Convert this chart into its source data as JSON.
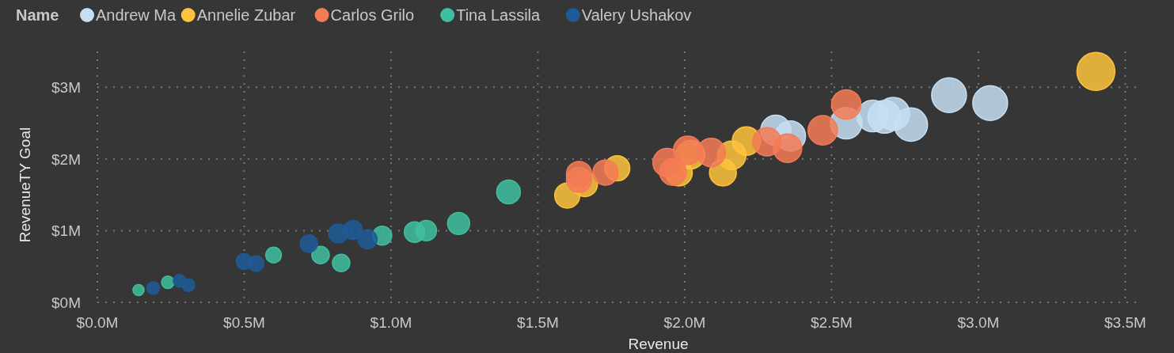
{
  "chart_data": {
    "type": "bubble",
    "xlabel": "Revenue",
    "ylabel": "RevenueTY Goal",
    "legend_title": "Name",
    "legend": "top left",
    "grid": true,
    "xlim": [
      0,
      3.55
    ],
    "ylim": [
      0,
      3.5
    ],
    "xticks": [
      {
        "value": 0,
        "label": "$0.0M"
      },
      {
        "value": 0.5,
        "label": "$0.5M"
      },
      {
        "value": 1,
        "label": "$1.0M"
      },
      {
        "value": 1.5,
        "label": "$1.5M"
      },
      {
        "value": 2,
        "label": "$2.0M"
      },
      {
        "value": 2.5,
        "label": "$2.5M"
      },
      {
        "value": 3,
        "label": "$3.0M"
      },
      {
        "value": 3.5,
        "label": "$3.5M"
      }
    ],
    "yticks": [
      {
        "value": 0,
        "label": "$0M"
      },
      {
        "value": 1,
        "label": "$1M"
      },
      {
        "value": 2,
        "label": "$2M"
      },
      {
        "value": 3,
        "label": "$3M"
      }
    ],
    "series": [
      {
        "name": "Andrew Ma",
        "color": "#c6dff3",
        "x": [
          2.31,
          2.36,
          2.55,
          2.64,
          2.68,
          2.71,
          2.77,
          2.9,
          3.04
        ],
        "values": [
          2.4,
          2.32,
          2.5,
          2.6,
          2.59,
          2.63,
          2.48,
          2.89,
          2.78
        ],
        "sizes": [
          0.63,
          0.63,
          0.69,
          0.69,
          0.75,
          0.75,
          0.77,
          0.84,
          0.84
        ]
      },
      {
        "name": "Annelie Zubar",
        "color": "#fec33c",
        "x": [
          1.6,
          1.66,
          1.77,
          1.98,
          2.02,
          2.13,
          2.16,
          2.21,
          3.4
        ],
        "values": [
          1.49,
          1.65,
          1.87,
          1.81,
          2.06,
          1.81,
          2.05,
          2.25,
          3.22
        ],
        "sizes": [
          0.44,
          0.44,
          0.44,
          0.5,
          0.56,
          0.5,
          0.56,
          0.56,
          1
        ]
      },
      {
        "name": "Carlos Grilo",
        "color": "#f47b56",
        "x": [
          1.64,
          1.64,
          1.73,
          1.94,
          1.96,
          2.01,
          2.09,
          2.28,
          2.35,
          2.47,
          2.55
        ],
        "values": [
          1.71,
          1.79,
          1.81,
          1.95,
          1.82,
          2.12,
          2.09,
          2.24,
          2.15,
          2.4,
          2.76
        ],
        "sizes": [
          0.44,
          0.44,
          0.44,
          0.56,
          0.5,
          0.56,
          0.56,
          0.56,
          0.56,
          0.6,
          0.6
        ]
      },
      {
        "name": "Tina Lassila",
        "color": "#3fbfa0",
        "x": [
          0.14,
          0.24,
          0.6,
          0.76,
          0.83,
          0.97,
          1.08,
          1.12,
          1.23,
          1.4
        ],
        "values": [
          0.17,
          0.28,
          0.66,
          0.66,
          0.55,
          0.93,
          0.98,
          1.0,
          1.1,
          1.54
        ],
        "sizes": [
          0.085,
          0.11,
          0.17,
          0.21,
          0.21,
          0.25,
          0.29,
          0.29,
          0.34,
          0.39
        ]
      },
      {
        "name": "Valery Ushakov",
        "color": "#1e5a96",
        "x": [
          0.19,
          0.28,
          0.31,
          0.5,
          0.54,
          0.72,
          0.82,
          0.87,
          0.92
        ],
        "values": [
          0.2,
          0.3,
          0.24,
          0.57,
          0.54,
          0.82,
          0.96,
          1.01,
          0.88
        ],
        "sizes": [
          0.11,
          0.11,
          0.11,
          0.17,
          0.17,
          0.21,
          0.25,
          0.25,
          0.25
        ]
      }
    ]
  }
}
